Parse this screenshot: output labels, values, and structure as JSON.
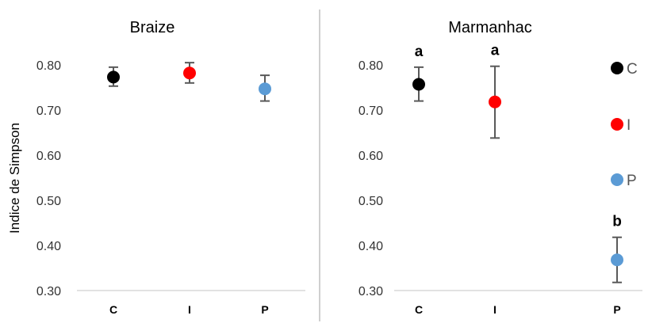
{
  "chart_data": {
    "type": "scatter",
    "ylabel": "Indice de Simpson",
    "ylim": [
      0.3,
      0.8
    ],
    "yticks": [
      "0.30",
      "0.40",
      "0.50",
      "0.60",
      "0.70",
      "0.80"
    ],
    "categories": [
      "C",
      "I",
      "P"
    ],
    "colors": {
      "C": "#000000",
      "I": "#ff0000",
      "P": "#5b9bd5"
    },
    "legend": {
      "placement": "right",
      "entries": [
        {
          "label": "C",
          "color": "#000000"
        },
        {
          "label": "I",
          "color": "#ff0000"
        },
        {
          "label": "P",
          "color": "#5b9bd5"
        }
      ]
    },
    "panels": [
      {
        "title": "Braize",
        "points": [
          {
            "category": "C",
            "value": 0.773,
            "err_low": 0.753,
            "err_high": 0.795,
            "label": ""
          },
          {
            "category": "I",
            "value": 0.782,
            "err_low": 0.76,
            "err_high": 0.805,
            "label": ""
          },
          {
            "category": "P",
            "value": 0.747,
            "err_low": 0.72,
            "err_high": 0.777,
            "label": ""
          }
        ]
      },
      {
        "title": "Marmanhac",
        "points": [
          {
            "category": "C",
            "value": 0.757,
            "err_low": 0.72,
            "err_high": 0.795,
            "label": "a"
          },
          {
            "category": "I",
            "value": 0.718,
            "err_low": 0.638,
            "err_high": 0.797,
            "label": "a"
          },
          {
            "category": "P",
            "value": 0.368,
            "err_low": 0.318,
            "err_high": 0.418,
            "label": "b"
          }
        ]
      }
    ]
  }
}
